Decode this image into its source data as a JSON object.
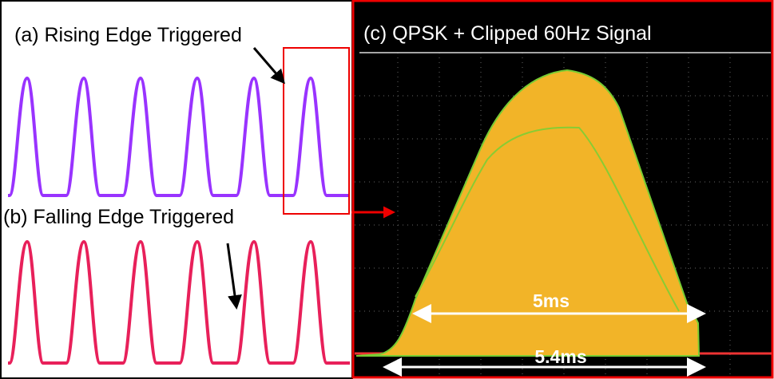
{
  "panels": {
    "a": {
      "label": "(a) Rising Edge Triggered"
    },
    "b": {
      "label": "(b) Falling Edge Triggered"
    },
    "c": {
      "label": "(c) QPSK + Clipped 60Hz Signal"
    }
  },
  "annotations": [
    "5ms",
    "5.4ms"
  ]
}
